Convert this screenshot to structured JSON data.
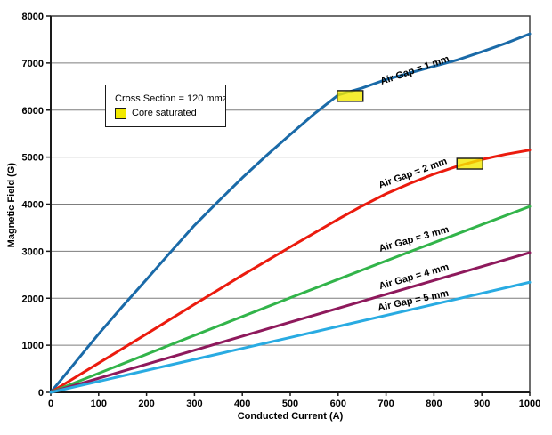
{
  "legend": {
    "cross_section_text": "Cross Section = 120 mm",
    "cross_section_exp": "2",
    "core_saturated_text": "Core saturated",
    "swatch_color": "#f2e900"
  },
  "chart_data": {
    "type": "line",
    "title": "",
    "xlabel": "Conducted Current (A)",
    "ylabel": "Magnetic Field (G)",
    "xlim": [
      0,
      1000
    ],
    "ylim": [
      0,
      8000
    ],
    "xtick_step": 100,
    "ytick_step": 1000,
    "grid": "horizontal-only",
    "grid_color": "#7d7d7d",
    "border_color": "#3f3f3f",
    "axis_color": "#1a1a1a",
    "marker_style": {
      "width": 29,
      "height": 12,
      "fill": "#f2e900",
      "border": "#1a1a1a"
    },
    "series": [
      {
        "name": "air-gap-1mm",
        "label": "Air Gap = 1 mm",
        "color": "#1a6aa8",
        "points": [
          [
            0,
            0
          ],
          [
            50,
            620
          ],
          [
            100,
            1240
          ],
          [
            150,
            1830
          ],
          [
            200,
            2400
          ],
          [
            250,
            2980
          ],
          [
            300,
            3550
          ],
          [
            350,
            4060
          ],
          [
            400,
            4560
          ],
          [
            450,
            5030
          ],
          [
            500,
            5480
          ],
          [
            550,
            5920
          ],
          [
            600,
            6320
          ],
          [
            650,
            6470
          ],
          [
            700,
            6650
          ],
          [
            750,
            6790
          ],
          [
            800,
            6930
          ],
          [
            850,
            7070
          ],
          [
            900,
            7240
          ],
          [
            950,
            7420
          ],
          [
            1000,
            7620
          ]
        ],
        "label_x": 762,
        "label_y": 6790,
        "label_angle": -19,
        "saturation_marker": {
          "x": 625,
          "y": 6300
        }
      },
      {
        "name": "air-gap-2mm",
        "label": "Air Gap = 2 mm",
        "color": "#eb1b0e",
        "points": [
          [
            0,
            0
          ],
          [
            100,
            620
          ],
          [
            200,
            1240
          ],
          [
            300,
            1870
          ],
          [
            400,
            2490
          ],
          [
            500,
            3090
          ],
          [
            600,
            3680
          ],
          [
            650,
            3960
          ],
          [
            700,
            4220
          ],
          [
            750,
            4440
          ],
          [
            800,
            4640
          ],
          [
            850,
            4810
          ],
          [
            900,
            4950
          ],
          [
            950,
            5060
          ],
          [
            1000,
            5150
          ]
        ],
        "label_x": 758,
        "label_y": 4600,
        "label_angle": -20,
        "saturation_marker": {
          "x": 875,
          "y": 4860
        }
      },
      {
        "name": "air-gap-3mm",
        "label": "Air Gap = 3 mm",
        "color": "#32b44a",
        "points": [
          [
            0,
            0
          ],
          [
            250,
            1010
          ],
          [
            500,
            2010
          ],
          [
            750,
            2990
          ],
          [
            1000,
            3950
          ]
        ],
        "label_x": 760,
        "label_y": 3200,
        "label_angle": -16,
        "saturation_marker": null
      },
      {
        "name": "air-gap-4mm",
        "label": "Air Gap = 4 mm",
        "color": "#8e195c",
        "points": [
          [
            0,
            0
          ],
          [
            500,
            1490
          ],
          [
            1000,
            2970
          ]
        ],
        "label_x": 760,
        "label_y": 2400,
        "label_angle": -16,
        "saturation_marker": null
      },
      {
        "name": "air-gap-5mm",
        "label": "Air Gap = 5 mm",
        "color": "#29abe2",
        "points": [
          [
            0,
            0
          ],
          [
            500,
            1165
          ],
          [
            1000,
            2340
          ]
        ],
        "label_x": 758,
        "label_y": 1890,
        "label_angle": -12,
        "saturation_marker": null
      }
    ]
  }
}
